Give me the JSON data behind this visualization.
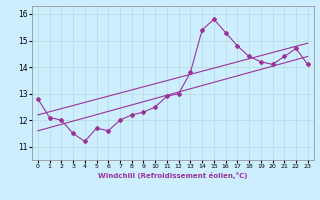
{
  "xlabel": "Windchill (Refroidissement éolien,°C)",
  "background_color": "#cceeff",
  "grid_color": "#aadddd",
  "line_color": "#993399",
  "x_hours": [
    0,
    1,
    2,
    3,
    4,
    5,
    6,
    7,
    8,
    9,
    10,
    11,
    12,
    13,
    14,
    15,
    16,
    17,
    18,
    19,
    20,
    21,
    22,
    23
  ],
  "windchill": [
    12.8,
    12.1,
    12.0,
    11.5,
    11.2,
    11.7,
    11.6,
    12.0,
    12.2,
    12.3,
    12.5,
    12.9,
    13.0,
    13.8,
    15.4,
    15.8,
    15.3,
    14.8,
    14.4,
    14.2,
    14.1,
    14.4,
    14.7,
    14.1
  ],
  "ylim": [
    10.5,
    16.3
  ],
  "xlim": [
    -0.5,
    23.5
  ],
  "yticks": [
    11,
    12,
    13,
    14,
    15,
    16
  ],
  "xticks": [
    0,
    1,
    2,
    3,
    4,
    5,
    6,
    7,
    8,
    9,
    10,
    11,
    12,
    13,
    14,
    15,
    16,
    17,
    18,
    19,
    20,
    21,
    22,
    23
  ],
  "trend1_x": [
    0,
    23
  ],
  "trend1_y": [
    11.6,
    14.4
  ],
  "trend2_x": [
    0,
    23
  ],
  "trend2_y": [
    12.2,
    14.9
  ]
}
